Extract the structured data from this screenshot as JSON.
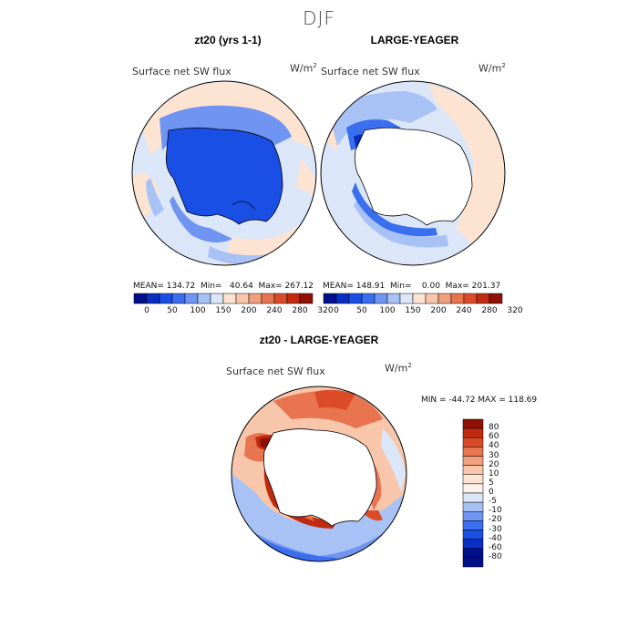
{
  "season": "DJF",
  "panels": [
    {
      "title": "zt20 (yrs 1-1)",
      "variable": "Surface net SW flux",
      "units": "W/m",
      "units_exp": "2",
      "stats": "MEAN= 134.72  Min=   40.64  Max= 267.12"
    },
    {
      "title": "LARGE-YEAGER",
      "variable": "Surface net SW flux",
      "units": "W/m",
      "units_exp": "2",
      "stats": "MEAN= 148.91  Min=    0.00  Max= 201.37"
    },
    {
      "title": "zt20 - LARGE-YEAGER",
      "variable": "Surface net SW flux",
      "units": "W/m",
      "units_exp": "2",
      "stats": "MIN = -44.72 MAX = 118.69"
    }
  ],
  "colorbar_top": {
    "labels": [
      "0",
      "50",
      "100",
      "150",
      "200",
      "240",
      "280",
      "320"
    ],
    "colors": [
      "#000f8a",
      "#0a2dc4",
      "#1a4fe6",
      "#3a6ff0",
      "#6f94f2",
      "#a9c2f5",
      "#dbe6f8",
      "#fde4d2",
      "#f8c6aa",
      "#f0a07c",
      "#e8754f",
      "#dc4b28",
      "#c02a10",
      "#8f1005"
    ]
  },
  "colorbar_diff": {
    "labels": [
      "80",
      "60",
      "40",
      "30",
      "20",
      "10",
      "5",
      "0",
      "-5",
      "-10",
      "-20",
      "-30",
      "-40",
      "-60",
      "-80"
    ],
    "colors": [
      "#8f1005",
      "#c02a10",
      "#dc4b28",
      "#e8754f",
      "#f0a07c",
      "#f8c6aa",
      "#fde4d2",
      "#fdf2ea",
      "#dbe6f8",
      "#a9c2f5",
      "#6f94f2",
      "#3a6ff0",
      "#1a4fe6",
      "#0a2dc4",
      "#000f8a",
      "#000f8a"
    ]
  }
}
